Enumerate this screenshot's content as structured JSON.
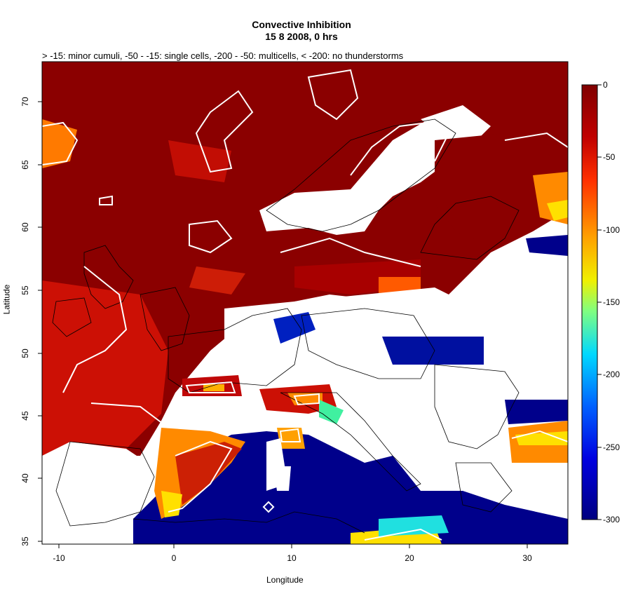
{
  "title": "Convective Inhibition",
  "date_line": "15 8 2008, 0 hrs",
  "legend_text": "> -15: minor cumuli, -50 - -15: single cells, -200 - -50: multicells,  < -200: no thunderstorms",
  "xlabel": "Longitude",
  "ylabel": "Latitude",
  "x_ticks": [
    "-10",
    "0",
    "10",
    "20",
    "30"
  ],
  "y_ticks": [
    "35",
    "40",
    "45",
    "50",
    "55",
    "60",
    "65",
    "70"
  ],
  "colorbar_ticks": [
    "0",
    "-50",
    "-100",
    "-150",
    "-200",
    "-250",
    "-300"
  ],
  "colors": {
    "deep_red": "#8b0000",
    "red": "#c8100a",
    "orange": "#ff8a00",
    "yellow": "#ffe000",
    "cyan": "#00c8ff",
    "navy": "#00008b"
  }
}
